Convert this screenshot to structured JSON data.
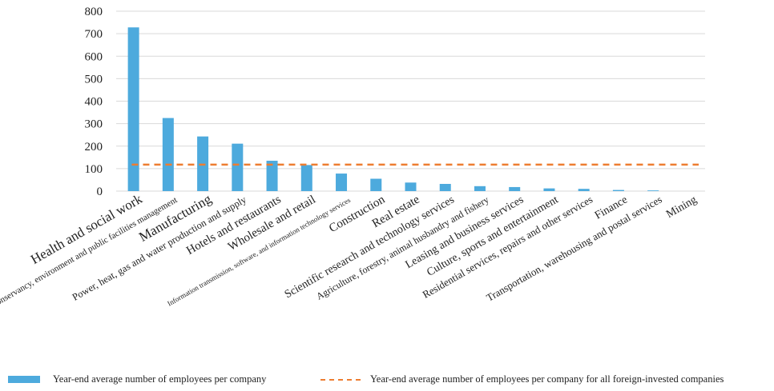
{
  "chart_data": {
    "type": "bar",
    "categories": [
      "Health and social work",
      "Water conservancy, environment and public facilities management",
      "Manufacturing",
      "Power, heat, gas and water production and supply",
      "Hotels and restaurants",
      "Wholesale and retail",
      "Information transmission, software, and information technology services",
      "Construction",
      "Real estate",
      "Scientific research and technology services",
      "Agriculture, forestry, animal husbandry and fishery",
      "Leasing and business services",
      "Culture, sports and entertainment",
      "Residential services, repairs and other services",
      "Finance",
      "Transportation, warehousing and postal services",
      "Mining"
    ],
    "series": [
      {
        "name": "Year-end average number of employees per company",
        "type": "bar",
        "color": "#4DAADD",
        "values": [
          728,
          325,
          243,
          211,
          135,
          116,
          78,
          55,
          38,
          32,
          22,
          18,
          12,
          10,
          5,
          3,
          0
        ]
      },
      {
        "name": "Year-end average number of employees per company for all foreign-invested companies",
        "type": "line",
        "style": "dashed",
        "color": "#ED7D31",
        "values": [
          118,
          118,
          118,
          118,
          118,
          118,
          118,
          118,
          118,
          118,
          118,
          118,
          118,
          118,
          118,
          118,
          118
        ]
      }
    ],
    "ylim": [
      0,
      800
    ],
    "yticks": [
      0,
      100,
      200,
      300,
      400,
      500,
      600,
      700,
      800
    ],
    "grid": "horizontal",
    "legend_position": "bottom"
  }
}
